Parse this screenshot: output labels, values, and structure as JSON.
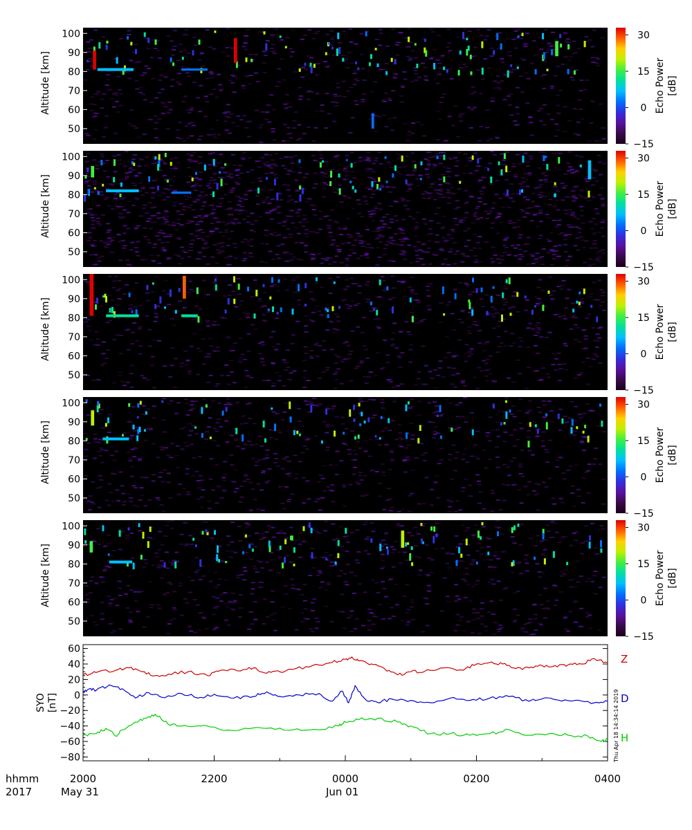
{
  "colors": {
    "background": "#ffffff",
    "panel_bg": "#000000",
    "axis": "#000000",
    "z_color": "#cc0000",
    "d_color": "#0000cc",
    "h_color": "#00cc00",
    "echo_colormap": [
      "#1a001a",
      "#3a0a4a",
      "#5a10a0",
      "#3030e0",
      "#0070ff",
      "#00c0ff",
      "#00e0a0",
      "#40f040",
      "#c0f000",
      "#ffd000",
      "#ff6000",
      "#e00000"
    ]
  },
  "footer": {
    "row1_label": "hhmm",
    "row2_label": "2017",
    "date_start": "May 31",
    "date_mid": "Jun 01"
  },
  "timestamp": "Thu Apr 18 14:34:14 2019",
  "chart_data": [
    {
      "type": "heatmap",
      "panel": 1,
      "ylabel": "Altitude [km]",
      "yticks": [
        50,
        60,
        70,
        80,
        90,
        100
      ],
      "ylim": [
        42,
        103
      ],
      "colorbar_label": "Echo Power [dB]",
      "colorbar_ticks": [
        -15,
        0,
        15,
        30
      ],
      "clim": [
        -15,
        33
      ],
      "echo_features": [
        {
          "t": 0.22,
          "alt": 81,
          "dt": 0.55,
          "dalt": 1.5,
          "level": 5
        },
        {
          "t": 0.15,
          "alt": 86,
          "dt": 0.05,
          "dalt": 10,
          "level": 11
        },
        {
          "t": 2.3,
          "alt": 91,
          "dt": 0.05,
          "dalt": 13,
          "level": 11
        },
        {
          "t": 1.5,
          "alt": 81,
          "dt": 0.4,
          "dalt": 1.2,
          "level": 4
        },
        {
          "t": 4.4,
          "alt": 54,
          "dt": 0.04,
          "dalt": 8,
          "level": 4
        },
        {
          "t": 7.2,
          "alt": 92,
          "dt": 0.05,
          "dalt": 8,
          "level": 7
        }
      ]
    },
    {
      "type": "heatmap",
      "panel": 2,
      "ylabel": "Altitude [km]",
      "yticks": [
        50,
        60,
        70,
        80,
        90,
        100
      ],
      "ylim": [
        42,
        103
      ],
      "colorbar_label": "Echo Power [dB]",
      "colorbar_ticks": [
        -15,
        0,
        15,
        30
      ],
      "clim": [
        -15,
        33
      ],
      "echo_features": [
        {
          "t": 0.35,
          "alt": 82,
          "dt": 0.5,
          "dalt": 1.5,
          "level": 5
        },
        {
          "t": 0.12,
          "alt": 92,
          "dt": 0.05,
          "dalt": 6,
          "level": 7
        },
        {
          "t": 1.35,
          "alt": 81,
          "dt": 0.3,
          "dalt": 1.2,
          "level": 4
        },
        {
          "t": 7.7,
          "alt": 93,
          "dt": 0.05,
          "dalt": 10,
          "level": 5
        }
      ]
    },
    {
      "type": "heatmap",
      "panel": 3,
      "ylabel": "Altitude [km]",
      "yticks": [
        50,
        60,
        70,
        80,
        90,
        100
      ],
      "ylim": [
        42,
        103
      ],
      "colorbar_label": "Echo Power [dB]",
      "colorbar_ticks": [
        -15,
        0,
        15,
        30
      ],
      "clim": [
        -15,
        33
      ],
      "echo_features": [
        {
          "t": 0.35,
          "alt": 81,
          "dt": 0.5,
          "dalt": 1.5,
          "level": 6
        },
        {
          "t": 0.1,
          "alt": 92,
          "dt": 0.06,
          "dalt": 22,
          "level": 11
        },
        {
          "t": 1.5,
          "alt": 81,
          "dt": 0.25,
          "dalt": 1.5,
          "level": 6
        },
        {
          "t": 1.52,
          "alt": 96,
          "dt": 0.05,
          "dalt": 12,
          "level": 10
        }
      ]
    },
    {
      "type": "heatmap",
      "panel": 4,
      "ylabel": "Altitude [km]",
      "yticks": [
        50,
        60,
        70,
        80,
        90,
        100
      ],
      "ylim": [
        42,
        103
      ],
      "colorbar_label": "Echo Power [dB]",
      "colorbar_ticks": [
        -15,
        0,
        15,
        30
      ],
      "clim": [
        -15,
        33
      ],
      "echo_features": [
        {
          "t": 0.3,
          "alt": 81,
          "dt": 0.4,
          "dalt": 1.5,
          "level": 5
        },
        {
          "t": 0.12,
          "alt": 92,
          "dt": 0.05,
          "dalt": 8,
          "level": 8
        }
      ]
    },
    {
      "type": "heatmap",
      "panel": 5,
      "ylabel": "Altitude [km]",
      "yticks": [
        50,
        60,
        70,
        80,
        90,
        100
      ],
      "ylim": [
        42,
        103
      ],
      "colorbar_label": "Echo Power [dB]",
      "colorbar_ticks": [
        -15,
        0,
        15,
        30
      ],
      "clim": [
        -15,
        33
      ],
      "echo_features": [
        {
          "t": 0.4,
          "alt": 81,
          "dt": 0.35,
          "dalt": 1.5,
          "level": 5
        },
        {
          "t": 0.1,
          "alt": 89,
          "dt": 0.05,
          "dalt": 6,
          "level": 7
        },
        {
          "t": 4.85,
          "alt": 93,
          "dt": 0.05,
          "dalt": 9,
          "level": 8
        }
      ]
    },
    {
      "type": "line",
      "ylabel": "SYO [nT]",
      "yticks": [
        -80,
        -60,
        -40,
        -20,
        0,
        20,
        40,
        60
      ],
      "ylim": [
        -85,
        65
      ],
      "xlim": [
        0,
        8
      ],
      "xticks": [
        0,
        2,
        4,
        6,
        8
      ],
      "xtick_labels": [
        "2000",
        "2200",
        "0000",
        "0200",
        "0400"
      ],
      "series": [
        {
          "name": "Z",
          "color": "#cc0000",
          "x": [
            0,
            0.2,
            0.5,
            0.7,
            0.9,
            1.1,
            1.3,
            1.6,
            1.9,
            2.1,
            2.4,
            2.6,
            2.8,
            3.0,
            3.2,
            3.5,
            3.8,
            4.0,
            4.1,
            4.2,
            4.4,
            4.6,
            4.8,
            5.0,
            5.2,
            5.5,
            5.8,
            6.0,
            6.2,
            6.4,
            6.6,
            6.8,
            7.0,
            7.2,
            7.4,
            7.6,
            7.8,
            8.0
          ],
          "y": [
            26,
            29,
            32,
            35,
            30,
            25,
            27,
            30,
            25,
            32,
            31,
            35,
            28,
            30,
            33,
            38,
            42,
            46,
            49,
            44,
            40,
            34,
            26,
            30,
            30,
            35,
            32,
            40,
            42,
            40,
            34,
            35,
            38,
            38,
            39,
            40,
            47,
            42
          ]
        },
        {
          "name": "D",
          "color": "#0000cc",
          "x": [
            0,
            0.1,
            0.2,
            0.4,
            0.6,
            0.8,
            1.0,
            1.2,
            1.5,
            1.8,
            2.0,
            2.3,
            2.6,
            2.8,
            3.0,
            3.3,
            3.6,
            3.8,
            3.95,
            4.05,
            4.15,
            4.3,
            4.5,
            4.7,
            5.0,
            5.3,
            5.6,
            5.9,
            6.2,
            6.5,
            6.8,
            7.0,
            7.2,
            7.5,
            7.8,
            8.0
          ],
          "y": [
            4,
            8,
            6,
            13,
            8,
            -4,
            3,
            -3,
            2,
            -3,
            1,
            -4,
            -2,
            4,
            -2,
            0,
            2,
            -8,
            5,
            -10,
            12,
            -5,
            -10,
            -5,
            -7,
            -10,
            -4,
            -7,
            -4,
            -2,
            -8,
            -5,
            -6,
            -7,
            -10,
            -8
          ]
        },
        {
          "name": "H",
          "color": "#00cc00",
          "x": [
            0,
            0.2,
            0.35,
            0.5,
            0.6,
            0.8,
            0.95,
            1.1,
            1.3,
            1.5,
            1.8,
            2.1,
            2.4,
            2.8,
            3.2,
            3.6,
            3.9,
            4.0,
            4.2,
            4.5,
            4.8,
            5.0,
            5.3,
            5.6,
            5.9,
            6.2,
            6.5,
            6.8,
            7.1,
            7.4,
            7.7,
            7.9,
            8.0
          ],
          "y": [
            -52,
            -50,
            -43,
            -53,
            -45,
            -35,
            -30,
            -25,
            -38,
            -40,
            -40,
            -45,
            -45,
            -43,
            -45,
            -45,
            -40,
            -35,
            -32,
            -30,
            -35,
            -40,
            -50,
            -50,
            -52,
            -50,
            -45,
            -52,
            -50,
            -52,
            -53,
            -60,
            -57
          ]
        }
      ]
    }
  ]
}
